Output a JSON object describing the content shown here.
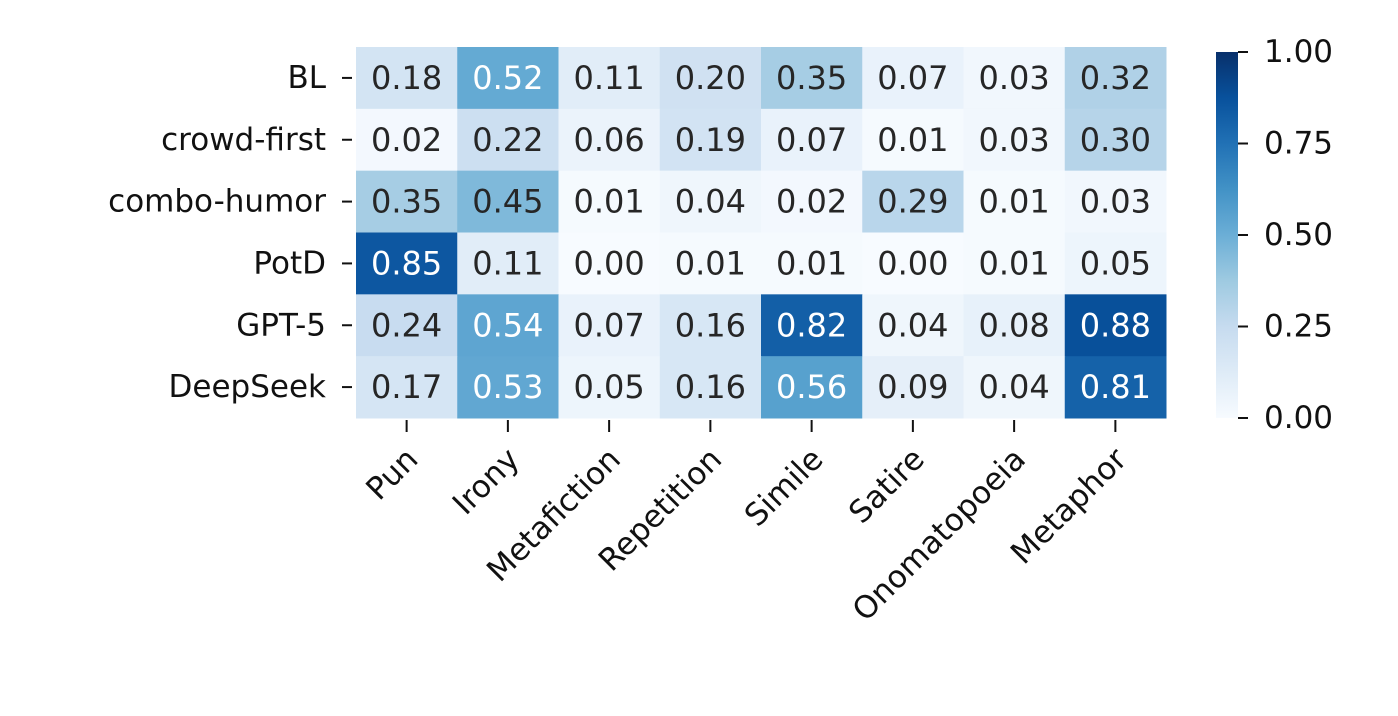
{
  "chart_data": {
    "type": "heatmap",
    "x_categories": [
      "Pun",
      "Irony",
      "Metafiction",
      "Repetition",
      "Simile",
      "Satire",
      "Onomatopoeia",
      "Metaphor"
    ],
    "y_categories": [
      "BL",
      "crowd-first",
      "combo-humor",
      "PotD",
      "GPT-5",
      "DeepSeek"
    ],
    "values": [
      [
        0.18,
        0.52,
        0.11,
        0.2,
        0.35,
        0.07,
        0.03,
        0.32
      ],
      [
        0.02,
        0.22,
        0.06,
        0.19,
        0.07,
        0.01,
        0.03,
        0.3
      ],
      [
        0.35,
        0.45,
        0.01,
        0.04,
        0.02,
        0.29,
        0.01,
        0.03
      ],
      [
        0.85,
        0.11,
        0.0,
        0.01,
        0.01,
        0.0,
        0.01,
        0.05
      ],
      [
        0.24,
        0.54,
        0.07,
        0.16,
        0.82,
        0.04,
        0.08,
        0.88
      ],
      [
        0.17,
        0.53,
        0.05,
        0.16,
        0.56,
        0.09,
        0.04,
        0.81
      ]
    ],
    "value_labels": [
      [
        "0.18",
        "0.52",
        "0.11",
        "0.20",
        "0.35",
        "0.07",
        "0.03",
        "0.32"
      ],
      [
        "0.02",
        "0.22",
        "0.06",
        "0.19",
        "0.07",
        "0.01",
        "0.03",
        "0.30"
      ],
      [
        "0.35",
        "0.45",
        "0.01",
        "0.04",
        "0.02",
        "0.29",
        "0.01",
        "0.03"
      ],
      [
        "0.85",
        "0.11",
        "0.00",
        "0.01",
        "0.01",
        "0.00",
        "0.01",
        "0.05"
      ],
      [
        "0.24",
        "0.54",
        "0.07",
        "0.16",
        "0.82",
        "0.04",
        "0.08",
        "0.88"
      ],
      [
        "0.17",
        "0.53",
        "0.05",
        "0.16",
        "0.56",
        "0.09",
        "0.04",
        "0.81"
      ]
    ],
    "colormap": "Blues",
    "clim": [
      0,
      1
    ],
    "colorbar_ticks": [
      {
        "value": 0,
        "label": "0.00"
      },
      {
        "value": 0.25,
        "label": "0.25"
      },
      {
        "value": 0.5,
        "label": "0.50"
      },
      {
        "value": 0.75,
        "label": "0.75"
      },
      {
        "value": 1,
        "label": "1.00"
      }
    ]
  }
}
